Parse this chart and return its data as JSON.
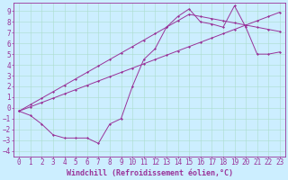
{
  "xlabel": "Windchill (Refroidissement éolien,°C)",
  "bg_color": "#cceeff",
  "grid_color": "#aaddcc",
  "line_color": "#993399",
  "xlim": [
    -0.5,
    23.5
  ],
  "ylim": [
    -4.5,
    9.8
  ],
  "xticks": [
    0,
    1,
    2,
    3,
    4,
    5,
    6,
    7,
    8,
    9,
    10,
    11,
    12,
    13,
    14,
    15,
    16,
    17,
    18,
    19,
    20,
    21,
    22,
    23
  ],
  "yticks": [
    -4,
    -3,
    -2,
    -1,
    0,
    1,
    2,
    3,
    4,
    5,
    6,
    7,
    8,
    9
  ],
  "line_a_x": [
    0,
    1,
    2,
    3,
    4,
    5,
    6,
    7,
    8,
    9,
    10,
    11,
    12,
    13,
    14,
    15,
    16,
    17,
    18,
    19,
    20,
    21,
    22,
    23
  ],
  "line_a_y": [
    -0.3,
    0.1,
    0.5,
    0.9,
    1.3,
    1.7,
    2.1,
    2.5,
    2.9,
    3.3,
    3.7,
    4.1,
    4.5,
    4.9,
    5.3,
    5.7,
    6.1,
    6.5,
    6.9,
    7.3,
    7.7,
    8.1,
    8.5,
    8.9
  ],
  "line_b_x": [
    0,
    1,
    2,
    3,
    4,
    5,
    6,
    7,
    8,
    9,
    10,
    11,
    12,
    13,
    14,
    15,
    16,
    17,
    18,
    19,
    20,
    21,
    22,
    23
  ],
  "line_b_y": [
    -0.3,
    0.3,
    0.9,
    1.5,
    2.1,
    2.7,
    3.3,
    3.9,
    4.5,
    5.1,
    5.7,
    6.3,
    6.9,
    7.5,
    8.1,
    8.7,
    8.5,
    8.3,
    8.1,
    7.9,
    7.7,
    7.5,
    7.3,
    7.1
  ],
  "line_c_x": [
    0,
    1,
    2,
    3,
    4,
    5,
    6,
    7,
    8,
    9,
    10,
    11,
    12,
    13,
    14,
    15,
    16,
    17,
    18,
    19,
    20,
    21,
    22,
    23
  ],
  "line_c_y": [
    -0.3,
    -0.7,
    -1.5,
    -2.5,
    -2.8,
    -2.8,
    -2.8,
    -3.3,
    -1.5,
    -1.0,
    2.0,
    4.5,
    5.5,
    7.5,
    8.5,
    9.2,
    8.0,
    7.8,
    7.5,
    9.5,
    7.5,
    5.0,
    5.0,
    5.2
  ],
  "xlabel_fontsize": 6,
  "tick_fontsize": 5.5
}
